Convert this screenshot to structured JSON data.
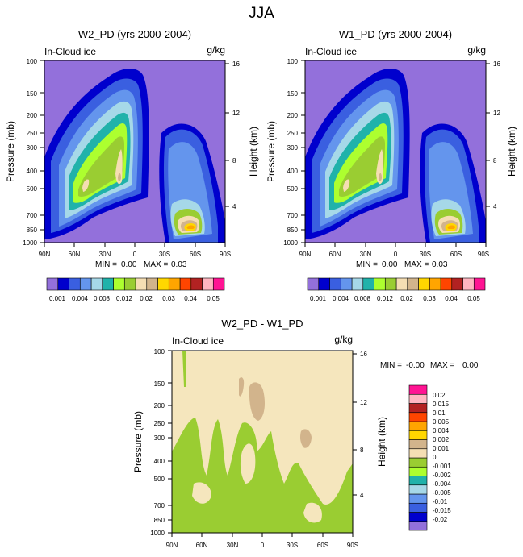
{
  "page_title": "JJA",
  "colors": {
    "lev1": "#9370db",
    "lev2": "#0000cd",
    "lev3": "#3a5fe0",
    "lev4": "#6495ed",
    "lev5": "#a6d8e8",
    "lev6": "#20b2aa",
    "lev7": "#adff2f",
    "lev8": "#9acd32",
    "lev9": "#f5deb3",
    "lev10": "#d2b48c",
    "lev11": "#ffd700",
    "lev12": "#ffa500",
    "lev13": "#ff4500",
    "lev14": "#b22222",
    "lev15": "#ffb6c1",
    "lev16": "#ff1493",
    "diff_bg": "#f5e6bd",
    "diff_green": "#9acd32",
    "diff_tan": "#d2b48c"
  },
  "chart_data": [
    {
      "type": "contour",
      "title": "W2_PD (yrs 2000-2004)",
      "left_label": "In-Cloud ice",
      "units": "g/kg",
      "ylabel": "Pressure (mb)",
      "ylabel_right": "Height (km)",
      "pressure_ticks": [
        "100",
        "150",
        "200",
        "250",
        "300",
        "400",
        "500",
        "700",
        "850",
        "1000"
      ],
      "height_ticks": [
        "16",
        "12",
        "8",
        "4"
      ],
      "lat_ticks": [
        "90N",
        "60N",
        "30N",
        "0",
        "30S",
        "60S",
        "90S"
      ],
      "ylim": [
        1000,
        100
      ],
      "xlim": [
        "90N",
        "90S"
      ],
      "min_label": "MIN =",
      "min_value": "0.00",
      "max_label": "MAX =",
      "max_value": "0.03",
      "colorbar_labels": [
        "0.001",
        "0.004",
        "0.008",
        "0.012",
        "0.02",
        "0.03",
        "0.04",
        "0.05"
      ]
    },
    {
      "type": "contour",
      "title": "W1_PD (yrs 2000-2004)",
      "left_label": "In-Cloud ice",
      "units": "g/kg",
      "ylabel": "Pressure (mb)",
      "ylabel_right": "Height (km)",
      "pressure_ticks": [
        "100",
        "150",
        "200",
        "250",
        "300",
        "400",
        "500",
        "700",
        "850",
        "1000"
      ],
      "height_ticks": [
        "16",
        "12",
        "8",
        "4"
      ],
      "lat_ticks": [
        "90N",
        "60N",
        "30N",
        "0",
        "30S",
        "60S",
        "90S"
      ],
      "ylim": [
        1000,
        100
      ],
      "xlim": [
        "90N",
        "90S"
      ],
      "min_label": "MIN =",
      "min_value": "0.00",
      "max_label": "MAX =",
      "max_value": "0.03",
      "colorbar_labels": [
        "0.001",
        "0.004",
        "0.008",
        "0.012",
        "0.02",
        "0.03",
        "0.04",
        "0.05"
      ]
    },
    {
      "type": "contour",
      "title": "W2_PD - W1_PD",
      "left_label": "In-Cloud ice",
      "units": "g/kg",
      "ylabel": "Pressure (mb)",
      "ylabel_right": "Height (km)",
      "pressure_ticks": [
        "100",
        "150",
        "200",
        "250",
        "300",
        "400",
        "500",
        "700",
        "850",
        "1000"
      ],
      "height_ticks": [
        "16",
        "12",
        "8",
        "4"
      ],
      "lat_ticks": [
        "90N",
        "60N",
        "30N",
        "0",
        "30S",
        "60S",
        "90S"
      ],
      "ylim": [
        1000,
        100
      ],
      "xlim": [
        "90N",
        "90S"
      ],
      "min_label": "MIN =",
      "min_value": "-0.00",
      "max_label": "MAX =",
      "max_value": "0.00",
      "colorbar_labels": [
        "0.02",
        "0.015",
        "0.01",
        "0.005",
        "0.004",
        "0.002",
        "0.001",
        "0",
        "-0.001",
        "-0.002",
        "-0.004",
        "-0.005",
        "-0.01",
        "-0.015",
        "-0.02"
      ]
    }
  ]
}
